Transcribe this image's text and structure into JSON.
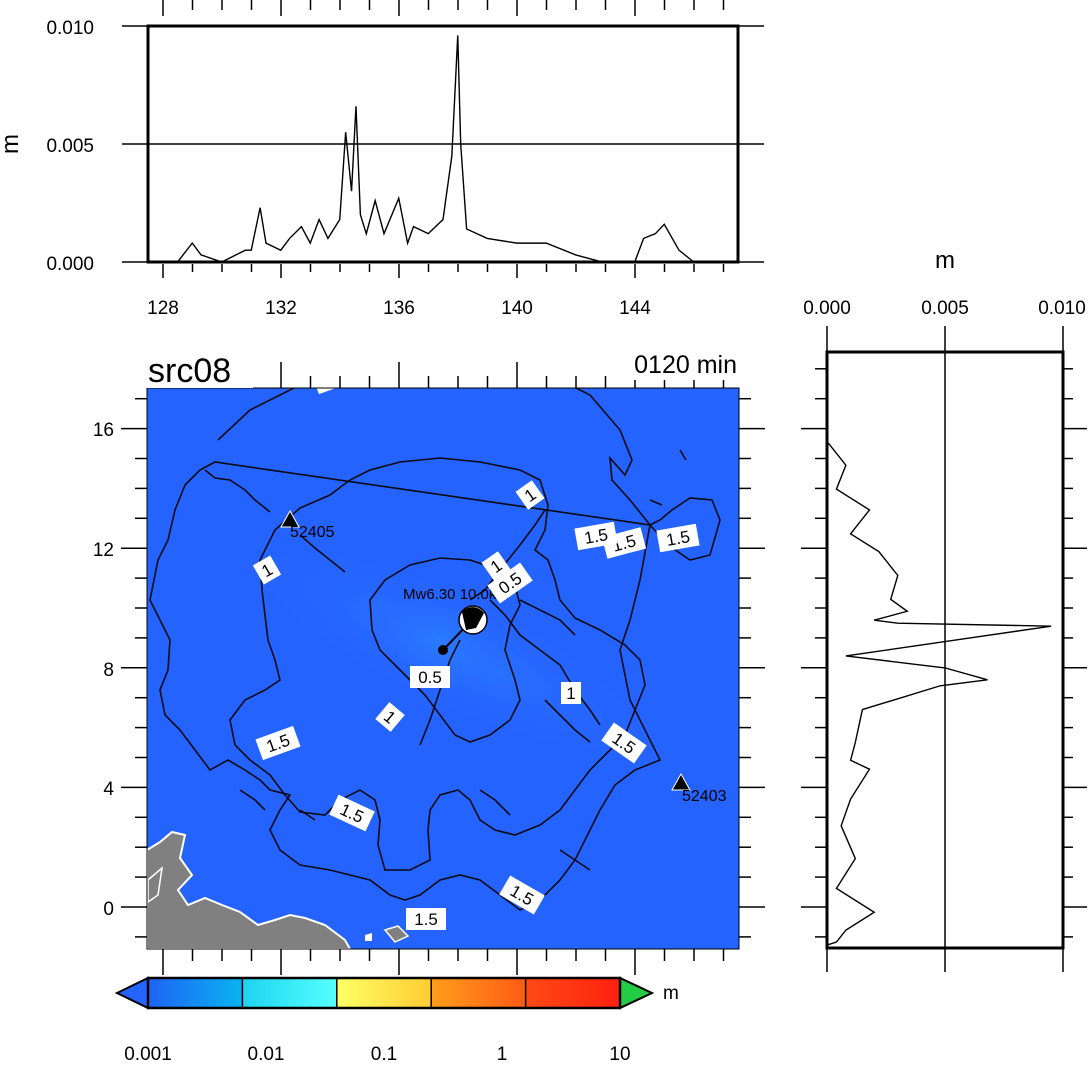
{
  "title": "src08",
  "time_label": "0120 min",
  "top_panel": {
    "ylabel": "m",
    "yticks": [
      "0.010",
      "0.005",
      "0.000"
    ],
    "xticks": [
      "128",
      "132",
      "136",
      "140",
      "144"
    ]
  },
  "right_panel": {
    "xlabel": "m",
    "xticks": [
      "0.000",
      "0.005",
      "0.010"
    ]
  },
  "map": {
    "yticks": [
      "16",
      "12",
      "8",
      "4",
      "0"
    ],
    "ocean_color": "#2563ff",
    "land_color": "#808080",
    "stations": [
      {
        "id": "52405",
        "lon": 132.2,
        "lat": 12.9
      },
      {
        "id": "52403",
        "lon": 145.6,
        "lat": 4.1
      }
    ],
    "source": {
      "label": "Mw6.30 10.0km",
      "lon": 138.3,
      "lat": 9.6
    },
    "epicenter": {
      "lon": 137.5,
      "lat": 8.6
    },
    "contour_labels": [
      "1.5",
      "1.5",
      "1",
      "1.5",
      "1.5",
      "1",
      "1",
      "0.5",
      "0.5",
      "1",
      "1",
      "1.5",
      "1.5",
      "1.5",
      "1.5",
      "1.5"
    ]
  },
  "colorbar": {
    "unit": "m",
    "labels": [
      "0.001",
      "0.01",
      "0.1",
      "1",
      "10"
    ],
    "colors": [
      "#1e63f5",
      "#35e5f0",
      "#f6f08a",
      "#f07a10",
      "#ff3010"
    ],
    "under_color": "#2563ff",
    "over_color": "#22cc44"
  },
  "chart_data": [
    {
      "type": "line",
      "title": "",
      "xlabel": "",
      "ylabel": "m",
      "xlim": [
        127.5,
        147.5
      ],
      "ylim": [
        0,
        0.01
      ],
      "x": [
        127.5,
        128.5,
        129.0,
        129.3,
        130.0,
        130.8,
        131.0,
        131.3,
        131.5,
        132.0,
        132.3,
        132.7,
        133.0,
        133.3,
        133.6,
        134.0,
        134.2,
        134.4,
        134.55,
        134.7,
        134.9,
        135.2,
        135.5,
        136.0,
        136.3,
        136.5,
        137.0,
        137.5,
        137.8,
        138.0,
        138.1,
        138.3,
        139.0,
        140.0,
        141.0,
        142.0,
        142.9,
        144.0,
        144.3,
        144.7,
        145.0,
        145.5,
        146.0
      ],
      "y": [
        0.0,
        0.0,
        0.0008,
        0.0003,
        0.0,
        0.0005,
        0.0005,
        0.0023,
        0.0008,
        0.0005,
        0.001,
        0.0015,
        0.0008,
        0.0018,
        0.001,
        0.0018,
        0.0055,
        0.003,
        0.0066,
        0.002,
        0.0012,
        0.0026,
        0.0012,
        0.0027,
        0.0008,
        0.0015,
        0.0012,
        0.0018,
        0.0045,
        0.0096,
        0.005,
        0.0014,
        0.001,
        0.0008,
        0.0008,
        0.0003,
        0.0,
        0.0,
        0.001,
        0.0012,
        0.0016,
        0.0005,
        0.0
      ]
    },
    {
      "type": "line",
      "title": "",
      "xlabel": "m",
      "ylabel": "",
      "xlim": [
        0,
        0.01
      ],
      "ylim": [
        -1.5,
        18.5
      ],
      "x": [
        0.0,
        0.0008,
        0.0004,
        0.0018,
        0.001,
        0.0022,
        0.003,
        0.0027,
        0.0034,
        0.002,
        0.003,
        0.0095,
        0.0008,
        0.005,
        0.0068,
        0.0048,
        0.0015,
        0.0012,
        0.001,
        0.0018,
        0.001,
        0.0006,
        0.0012,
        0.0004,
        0.002,
        0.0008,
        0.0004,
        0.0
      ],
      "y": [
        15.5,
        14.7,
        13.9,
        13.2,
        12.4,
        11.8,
        11.0,
        10.2,
        9.8,
        9.5,
        9.4,
        9.3,
        8.3,
        7.9,
        7.5,
        7.3,
        6.5,
        5.4,
        4.8,
        4.5,
        3.5,
        2.6,
        1.5,
        0.5,
        -0.3,
        -0.9,
        -1.3,
        -1.4
      ]
    }
  ]
}
